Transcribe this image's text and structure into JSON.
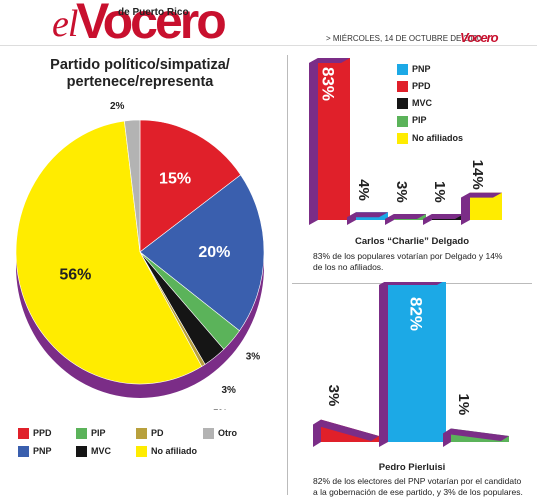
{
  "header": {
    "logo_el": "el",
    "logo_vocero": "Vocero",
    "logo_sub": "de Puerto Rico",
    "dateline": "> MIÉRCOLES, 14 DE OCTUBRE DE 2020",
    "mini_logo": "Vocero"
  },
  "colors": {
    "ppd": "#e0202a",
    "pnp": "#3a5fae",
    "pip": "#5bb35a",
    "pd": "#b8a03c",
    "mvc": "#151515",
    "otro": "#b3b3b3",
    "no_afiliado": "#ffec00",
    "side": "#7b2d87",
    "cyan": "#1ca9e6"
  },
  "chart_data": [
    {
      "type": "pie",
      "title": "Partido político/simpatiza/\npertenece/representa",
      "slices": [
        {
          "key": "ppd",
          "label": "PPD",
          "value": 15,
          "text": "15%"
        },
        {
          "key": "pnp",
          "label": "PNP",
          "value": 20,
          "text": "20%"
        },
        {
          "key": "pip",
          "label": "PIP",
          "value": 3,
          "text": "3%"
        },
        {
          "key": "mvc",
          "label": "MVC",
          "value": 3,
          "text": "3%"
        },
        {
          "key": "pd",
          "label": "PD",
          "value": 0.5,
          "text": ".5%"
        },
        {
          "key": "no_afiliado",
          "label": "No afiliado",
          "value": 56,
          "text": "56%"
        },
        {
          "key": "otro",
          "label": "Otro",
          "value": 2,
          "text": "2%"
        }
      ],
      "legend": [
        {
          "key": "ppd",
          "label": "PPD"
        },
        {
          "key": "pip",
          "label": "PIP"
        },
        {
          "key": "pd",
          "label": "PD"
        },
        {
          "key": "otro",
          "label": "Otro"
        },
        {
          "key": "pnp",
          "label": "PNP"
        },
        {
          "key": "mvc",
          "label": "MVC"
        },
        {
          "key": "no_afiliado",
          "label": "No afiliado"
        }
      ]
    },
    {
      "type": "bar",
      "title": "Carlos “Charlie” Delgado",
      "caption": "83% de los populares votarían por Delgado y 14% de los no afiliados.",
      "categories": [
        "PPD",
        "PNP",
        "PIP",
        "MVC",
        "No afiliados"
      ],
      "values": [
        83,
        4,
        3,
        1,
        14
      ],
      "labels": [
        "83%",
        "4%",
        "3%",
        "1%",
        "14%"
      ],
      "legend": [
        {
          "key": "cyan",
          "label": "PNP"
        },
        {
          "key": "ppd",
          "label": "PPD"
        },
        {
          "key": "mvc",
          "label": "MVC"
        },
        {
          "key": "pip",
          "label": "PIP"
        },
        {
          "key": "no_afiliado",
          "label": "No afiliados"
        }
      ]
    },
    {
      "type": "bar",
      "title": "Pedro Pierluisi",
      "caption": "82% de los electores del PNP votarían por el candidato a la gobernación de ese partido, y 3% de los populares.",
      "categories": [
        "PPD",
        "PNP",
        "PIP"
      ],
      "values": [
        3,
        82,
        1
      ],
      "labels": [
        "3%",
        "82%",
        "1%"
      ]
    }
  ]
}
